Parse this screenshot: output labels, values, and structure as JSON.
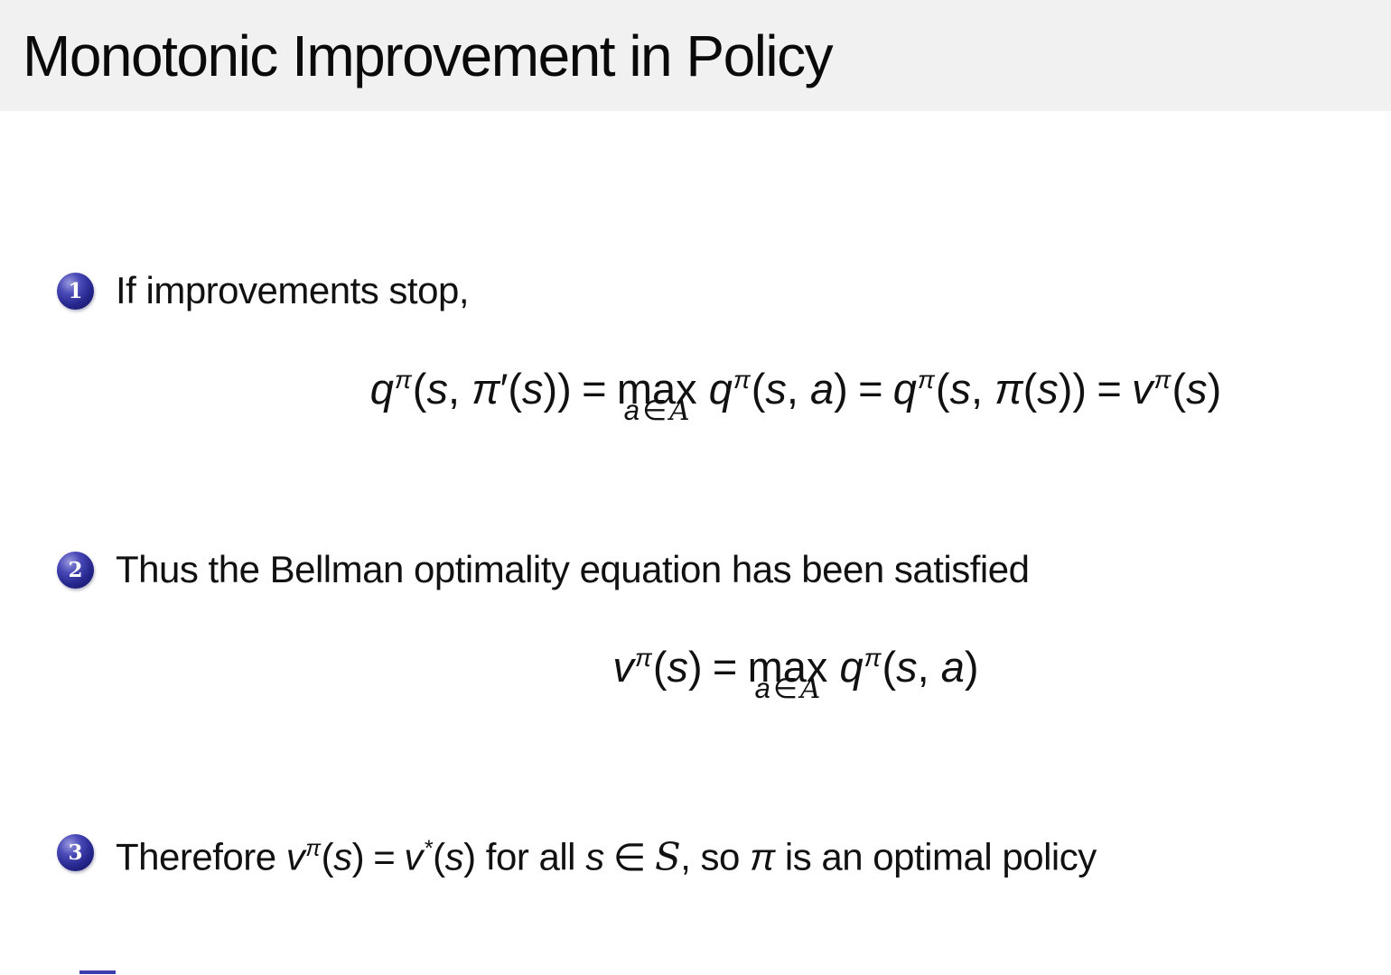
{
  "theme": {
    "header_bg": "#f1f1f1",
    "slide_bg": "#ffffff",
    "text_color": "#111111",
    "ball_color": "#26268e",
    "accent_color": "#3d3dae"
  },
  "title": "Monotonic Improvement in Policy",
  "items": [
    {
      "number": "1",
      "text": "If improvements stop,"
    },
    {
      "number": "2",
      "text": "Thus the Bellman optimality equation has been satisfied"
    },
    {
      "number": "3",
      "segments": [
        {
          "t": "r",
          "v": "Therefore "
        },
        {
          "t": "i",
          "v": "v"
        },
        {
          "t": "sup",
          "v": "π"
        },
        {
          "t": "r",
          "v": "("
        },
        {
          "t": "i",
          "v": "s"
        },
        {
          "t": "r",
          "v": ")"
        },
        {
          "t": "rel",
          "v": "="
        },
        {
          "t": "i",
          "v": "v"
        },
        {
          "t": "sup",
          "v": "*"
        },
        {
          "t": "r",
          "v": "("
        },
        {
          "t": "i",
          "v": "s"
        },
        {
          "t": "r",
          "v": ")"
        },
        {
          "t": "r",
          "v": " for all "
        },
        {
          "t": "i",
          "v": "s"
        },
        {
          "t": "rel",
          "v": "∈"
        },
        {
          "t": "cal",
          "v": "S"
        },
        {
          "t": "r",
          "v": ", so "
        },
        {
          "t": "i",
          "v": "π"
        },
        {
          "t": "r",
          "v": " is an optimal policy"
        }
      ]
    }
  ],
  "formulas": {
    "f1": {
      "segments": [
        {
          "t": "i",
          "v": "q"
        },
        {
          "t": "sup",
          "v": "π"
        },
        {
          "t": "r",
          "v": "("
        },
        {
          "t": "i",
          "v": "s"
        },
        {
          "t": "r",
          "v": ", "
        },
        {
          "t": "i",
          "v": "π"
        },
        {
          "t": "pr",
          "v": "′"
        },
        {
          "t": "r",
          "v": "("
        },
        {
          "t": "i",
          "v": "s"
        },
        {
          "t": "r",
          "v": "))"
        },
        {
          "t": "rel",
          "v": "="
        },
        {
          "t": "max",
          "main": "max",
          "sub": [
            {
              "t": "i",
              "v": "a"
            },
            {
              "t": "rel",
              "v": "∈"
            },
            {
              "t": "cal",
              "v": "A"
            }
          ]
        },
        {
          "t": "r",
          "v": " "
        },
        {
          "t": "i",
          "v": "q"
        },
        {
          "t": "sup",
          "v": "π"
        },
        {
          "t": "r",
          "v": "("
        },
        {
          "t": "i",
          "v": "s"
        },
        {
          "t": "r",
          "v": ", "
        },
        {
          "t": "i",
          "v": "a"
        },
        {
          "t": "r",
          "v": ")"
        },
        {
          "t": "rel",
          "v": "="
        },
        {
          "t": "i",
          "v": "q"
        },
        {
          "t": "sup",
          "v": "π"
        },
        {
          "t": "r",
          "v": "("
        },
        {
          "t": "i",
          "v": "s"
        },
        {
          "t": "r",
          "v": ", "
        },
        {
          "t": "i",
          "v": "π"
        },
        {
          "t": "r",
          "v": "("
        },
        {
          "t": "i",
          "v": "s"
        },
        {
          "t": "r",
          "v": "))"
        },
        {
          "t": "rel",
          "v": "="
        },
        {
          "t": "i",
          "v": "v"
        },
        {
          "t": "sup",
          "v": "π"
        },
        {
          "t": "r",
          "v": "("
        },
        {
          "t": "i",
          "v": "s"
        },
        {
          "t": "r",
          "v": ")"
        }
      ]
    },
    "f2": {
      "segments": [
        {
          "t": "i",
          "v": "v"
        },
        {
          "t": "sup",
          "v": "π"
        },
        {
          "t": "r",
          "v": "("
        },
        {
          "t": "i",
          "v": "s"
        },
        {
          "t": "r",
          "v": ")"
        },
        {
          "t": "rel",
          "v": "="
        },
        {
          "t": "max",
          "main": "max",
          "sub": [
            {
              "t": "i",
              "v": "a"
            },
            {
              "t": "rel",
              "v": "∈"
            },
            {
              "t": "cal",
              "v": "A"
            }
          ]
        },
        {
          "t": "r",
          "v": " "
        },
        {
          "t": "i",
          "v": "q"
        },
        {
          "t": "sup",
          "v": "π"
        },
        {
          "t": "r",
          "v": "("
        },
        {
          "t": "i",
          "v": "s"
        },
        {
          "t": "r",
          "v": ", "
        },
        {
          "t": "i",
          "v": "a"
        },
        {
          "t": "r",
          "v": ")"
        }
      ]
    }
  }
}
